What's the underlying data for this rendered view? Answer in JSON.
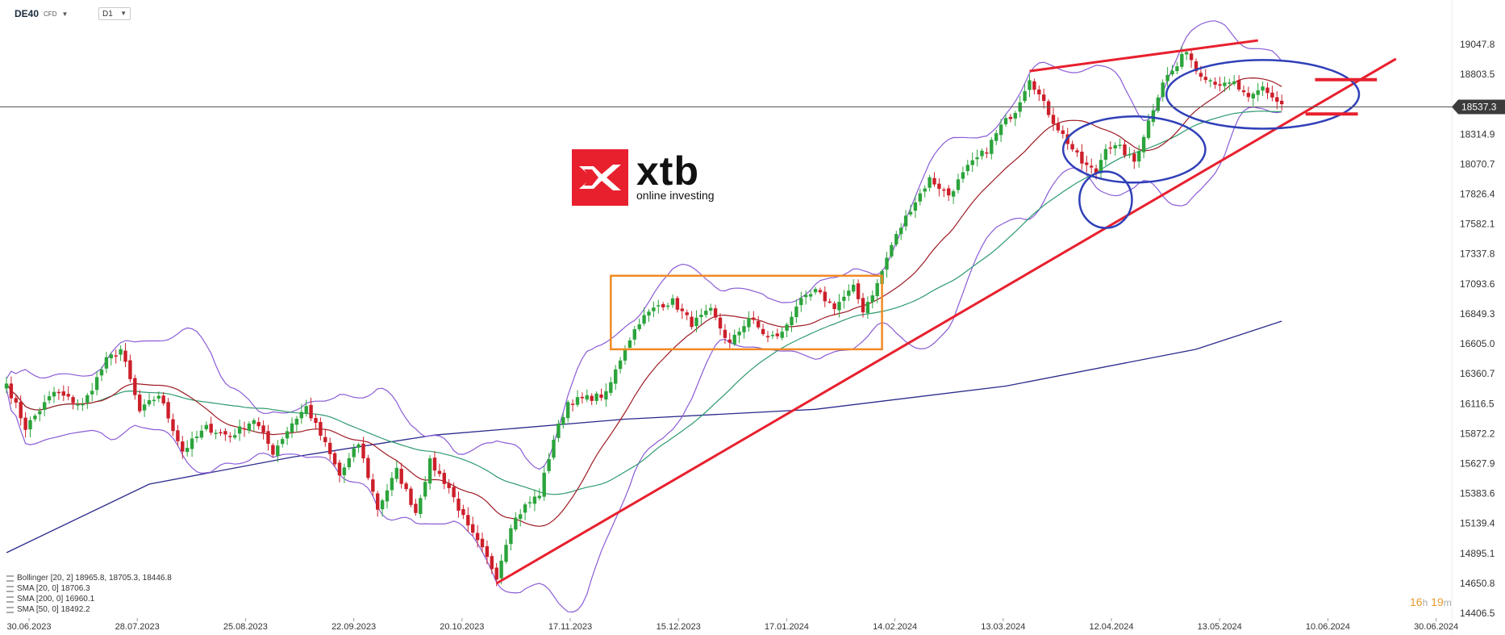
{
  "header": {
    "symbol": "DE40",
    "symbol_sub": "CFD",
    "timeframe": "D1"
  },
  "brand": {
    "name": "xtb",
    "tagline": "online investing",
    "color": "#e8202e"
  },
  "countdown": {
    "h": "16",
    "h_unit": "h",
    "m": "19",
    "m_unit": "m"
  },
  "current_price_label": "18537.3",
  "legend": [
    {
      "text": "Bollinger  [20, 2] 18965.8,  18705.3,  18446.8"
    },
    {
      "text": "SMA  [20, 0] 18706.3"
    },
    {
      "text": "SMA  [200, 0] 16960.1"
    },
    {
      "text": "SMA  [50, 0] 18492.2"
    }
  ],
  "colors": {
    "bull": "#2ca43c",
    "bear": "#cc1f2a",
    "sma20": "#9e1b24",
    "sma50": "#2e9a6e",
    "sma200": "#2a2a8c",
    "bollinger": "#8a5cd6",
    "trend": "#e8202e",
    "box": "#f08a24",
    "circle": "#3040b8",
    "price_line": "#555555"
  },
  "chart_data": {
    "type": "candlestick",
    "ylim": [
      14406.5,
      19200
    ],
    "y_ticks": [
      19047.8,
      18803.5,
      18559.2,
      18314.9,
      18070.7,
      17826.4,
      17582.1,
      17337.8,
      17093.6,
      16849.3,
      16605.0,
      16360.7,
      16116.5,
      15872.2,
      15627.9,
      15383.6,
      15139.4,
      14895.1,
      14650.8,
      14406.5
    ],
    "y_tick_labels": [
      "19047.8",
      "18803.5",
      "",
      "18314.9",
      "18070.7",
      "17826.4",
      "17582.1",
      "17337.8",
      "17093.6",
      "16849.3",
      "16605.0",
      "16360.7",
      "16116.5",
      "15872.2",
      "15627.9",
      "15383.6",
      "15139.4",
      "14895.1",
      "14650.8",
      "14406.5"
    ],
    "x_ticks": [
      "30.06.2023",
      "28.07.2023",
      "25.08.2023",
      "22.09.2023",
      "20.10.2023",
      "17.11.2023",
      "15.12.2023",
      "17.01.2024",
      "14.02.2024",
      "13.03.2024",
      "12.04.2024",
      "13.05.2024",
      "10.06.2024",
      "30.06.2024"
    ],
    "current_price": 18537.3,
    "pivots": [
      [
        0,
        16280
      ],
      [
        4,
        15920
      ],
      [
        10,
        16210
      ],
      [
        16,
        16100
      ],
      [
        21,
        16470
      ],
      [
        24,
        16560
      ],
      [
        28,
        16050
      ],
      [
        32,
        16190
      ],
      [
        37,
        15730
      ],
      [
        42,
        15920
      ],
      [
        47,
        15850
      ],
      [
        52,
        15990
      ],
      [
        56,
        15720
      ],
      [
        60,
        15960
      ],
      [
        63,
        16090
      ],
      [
        67,
        15780
      ],
      [
        70,
        15530
      ],
      [
        74,
        15790
      ],
      [
        78,
        15260
      ],
      [
        82,
        15570
      ],
      [
        86,
        15230
      ],
      [
        89,
        15640
      ],
      [
        93,
        15430
      ],
      [
        97,
        15100
      ],
      [
        100,
        14920
      ],
      [
        103,
        14710
      ],
      [
        106,
        15130
      ],
      [
        109,
        15280
      ],
      [
        112,
        15380
      ],
      [
        115,
        15830
      ],
      [
        118,
        16130
      ],
      [
        122,
        16160
      ],
      [
        126,
        16190
      ],
      [
        130,
        16580
      ],
      [
        133,
        16790
      ],
      [
        137,
        16920
      ],
      [
        140,
        16950
      ],
      [
        144,
        16770
      ],
      [
        148,
        16870
      ],
      [
        152,
        16600
      ],
      [
        156,
        16820
      ],
      [
        160,
        16650
      ],
      [
        163,
        16690
      ],
      [
        166,
        16920
      ],
      [
        170,
        17030
      ],
      [
        174,
        16910
      ],
      [
        178,
        17060
      ],
      [
        180,
        16880
      ],
      [
        183,
        17090
      ],
      [
        186,
        17410
      ],
      [
        190,
        17710
      ],
      [
        194,
        17950
      ],
      [
        198,
        17820
      ],
      [
        202,
        18040
      ],
      [
        206,
        18190
      ],
      [
        209,
        18380
      ],
      [
        212,
        18510
      ],
      [
        215,
        18780
      ],
      [
        218,
        18560
      ],
      [
        220,
        18420
      ],
      [
        223,
        18250
      ],
      [
        226,
        18080
      ],
      [
        229,
        18000
      ],
      [
        231,
        18220
      ],
      [
        234,
        18200
      ],
      [
        237,
        18090
      ],
      [
        240,
        18420
      ],
      [
        243,
        18750
      ],
      [
        246,
        18870
      ],
      [
        248,
        19010
      ],
      [
        250,
        18840
      ],
      [
        253,
        18760
      ],
      [
        256,
        18710
      ],
      [
        258,
        18730
      ],
      [
        261,
        18590
      ],
      [
        264,
        18700
      ],
      [
        267,
        18580
      ],
      [
        268,
        18560
      ]
    ],
    "sma200": [
      [
        0,
        14900
      ],
      [
        30,
        15460
      ],
      [
        60,
        15680
      ],
      [
        90,
        15860
      ],
      [
        130,
        15990
      ],
      [
        170,
        16070
      ],
      [
        210,
        16260
      ],
      [
        250,
        16560
      ],
      [
        268,
        16790
      ]
    ],
    "annotations": {
      "trendline_lower": [
        [
          103,
          14650
        ],
        [
          292,
          18930
        ]
      ],
      "trendline_upper": [
        [
          215,
          18830
        ],
        [
          263,
          19080
        ]
      ],
      "range_box": {
        "x": [
          127,
          184
        ],
        "y": [
          16560,
          17160
        ]
      },
      "circles": [
        {
          "center": [
            231,
            17780
          ],
          "radius_bars": 2.4,
          "radius_price": 230
        },
        {
          "center": [
            237,
            18190
          ],
          "radius_bars": 6.5,
          "radius_price": 270
        },
        {
          "center": [
            264,
            18640
          ],
          "radius_bars": 8.8,
          "radius_price": 280
        }
      ],
      "resistance_marks": [
        {
          "x": [
            275,
            288
          ],
          "y": 18760
        },
        {
          "x": [
            273,
            284
          ],
          "y": 18480
        }
      ]
    }
  }
}
